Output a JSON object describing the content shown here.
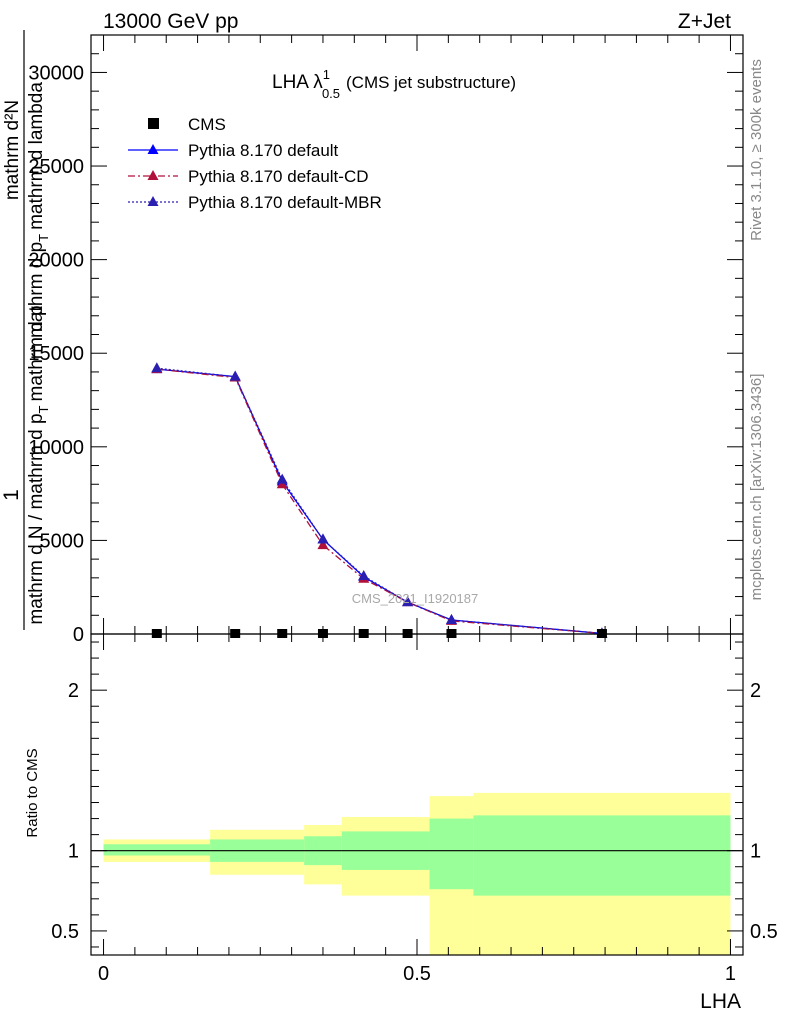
{
  "header": {
    "left": "13000 GeV pp",
    "right": "Z+Jet"
  },
  "side": {
    "rivet": "Rivet 3.1.10, ≥ 300k events",
    "mcplots": "mcplots.cern.ch [arXiv:1306.3436]"
  },
  "top_panel": {
    "title_main": "LHA λ",
    "title_sup": "1",
    "title_sub": "0.5",
    "title_suffix": "(CMS jet substructure)",
    "watermark": "CMS_2021_I1920187",
    "ylabel_numerator": "1",
    "ylabel_den_line1": "mathrm d N / mathrm d p",
    "ylabel_den_sub": "T",
    "ylabel_den_line2": "mathrm d p",
    "ylabel_extra": "mathrm d²N",
    "ylabel_extra2": "mathrm d p",
    "ylabel_extra2_sub": "T",
    "ylabel_extra3": "mathrm d lambda"
  },
  "bottom_panel": {
    "ylabel": "Ratio to CMS",
    "xlabel": "LHA"
  },
  "legend": [
    {
      "label": "CMS",
      "color": "#000000",
      "marker": "square",
      "dash": ""
    },
    {
      "label": "Pythia 8.170 default",
      "color": "#0000ff",
      "marker": "triangle",
      "dash": ""
    },
    {
      "label": "Pythia 8.170 default-CD",
      "color": "#b0103a",
      "marker": "triangle",
      "dash": "7,3,2,3"
    },
    {
      "label": "Pythia 8.170 default-MBR",
      "color": "#2a1fb0",
      "marker": "triangle",
      "dash": "2,2"
    }
  ],
  "chart_data": [
    {
      "type": "line",
      "panel": "main",
      "xlim": [
        -0.02,
        1.02
      ],
      "ylim": [
        0,
        32000
      ],
      "yticks": [
        0,
        5000,
        10000,
        15000,
        20000,
        25000,
        30000
      ],
      "ytick_labels": [
        "0",
        "5000",
        "10000",
        "15000",
        "20000",
        "25000",
        "30000"
      ],
      "data_x": [
        0.085,
        0.21,
        0.285,
        0.35,
        0.415,
        0.485,
        0.555,
        0.795
      ],
      "data_y": [
        0,
        0,
        0,
        0,
        0,
        0,
        0,
        0
      ],
      "series": [
        {
          "name": "Pythia 8.170 default",
          "x": [
            0.085,
            0.21,
            0.285,
            0.35,
            0.415,
            0.485,
            0.555,
            0.795
          ],
          "y": [
            14150,
            13750,
            8150,
            5050,
            3050,
            1700,
            750,
            30
          ]
        },
        {
          "name": "Pythia 8.170 default-CD",
          "x": [
            0.085,
            0.21,
            0.285,
            0.35,
            0.415,
            0.485,
            0.555,
            0.795
          ],
          "y": [
            14150,
            13700,
            8000,
            4750,
            2950,
            1700,
            700,
            30
          ]
        },
        {
          "name": "Pythia 8.170 default-MBR",
          "x": [
            0.085,
            0.21,
            0.285,
            0.35,
            0.415,
            0.485,
            0.555,
            0.795
          ],
          "y": [
            14200,
            13750,
            8250,
            5050,
            3100,
            1700,
            750,
            30
          ]
        }
      ]
    },
    {
      "type": "area",
      "panel": "ratio",
      "xlim": [
        -0.02,
        1.02
      ],
      "ylim": [
        0.35,
        2.35
      ],
      "yticks": [
        0.5,
        1,
        2
      ],
      "ytick_labels": [
        "0.5",
        "1",
        "2"
      ],
      "xticks": [
        0,
        0.5,
        1
      ],
      "xtick_labels": [
        "0",
        "0.5",
        "1"
      ],
      "bins": [
        {
          "x0": 0.0,
          "x1": 0.17,
          "stat_lo": 0.97,
          "stat_hi": 1.04,
          "tot_lo": 0.93,
          "tot_hi": 1.07
        },
        {
          "x0": 0.17,
          "x1": 0.32,
          "stat_lo": 0.93,
          "stat_hi": 1.07,
          "tot_lo": 0.85,
          "tot_hi": 1.13
        },
        {
          "x0": 0.32,
          "x1": 0.38,
          "stat_lo": 0.91,
          "stat_hi": 1.09,
          "tot_lo": 0.79,
          "tot_hi": 1.16
        },
        {
          "x0": 0.38,
          "x1": 0.52,
          "stat_lo": 0.88,
          "stat_hi": 1.12,
          "tot_lo": 0.72,
          "tot_hi": 1.21
        },
        {
          "x0": 0.52,
          "x1": 0.59,
          "stat_lo": 0.76,
          "stat_hi": 1.2,
          "tot_lo": 0.35,
          "tot_hi": 1.34
        },
        {
          "x0": 0.59,
          "x1": 1.0,
          "stat_lo": 0.72,
          "stat_hi": 1.22,
          "tot_lo": 0.35,
          "tot_hi": 1.36
        }
      ],
      "colors": {
        "stat": "#99ff99",
        "total": "#ffff99"
      }
    }
  ]
}
